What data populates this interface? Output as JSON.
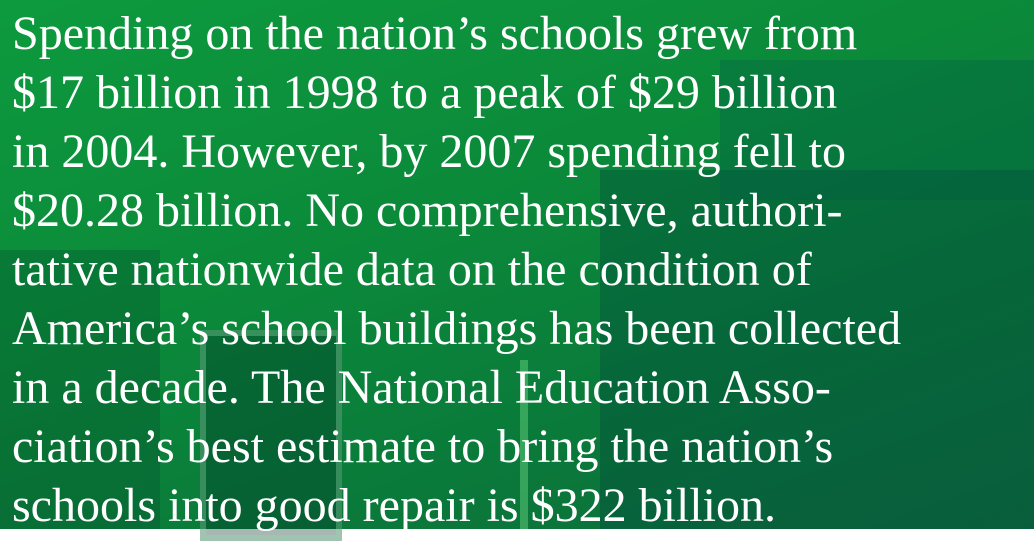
{
  "paragraph": {
    "lines": [
      "Spending on the nation’s schools grew from",
      "$17 billion in 1998 to a peak of $29 billion",
      "in 2004. However, by 2007 spending fell to",
      "$20.28 billion. No comprehensive, authori-",
      "tative nationwide data on the condition of",
      "America’s school buildings has been collected",
      "in a decade. The National Education Asso-",
      "ciation’s best estimate to bring the nation’s",
      "schools into good repair is $322 billion."
    ]
  }
}
